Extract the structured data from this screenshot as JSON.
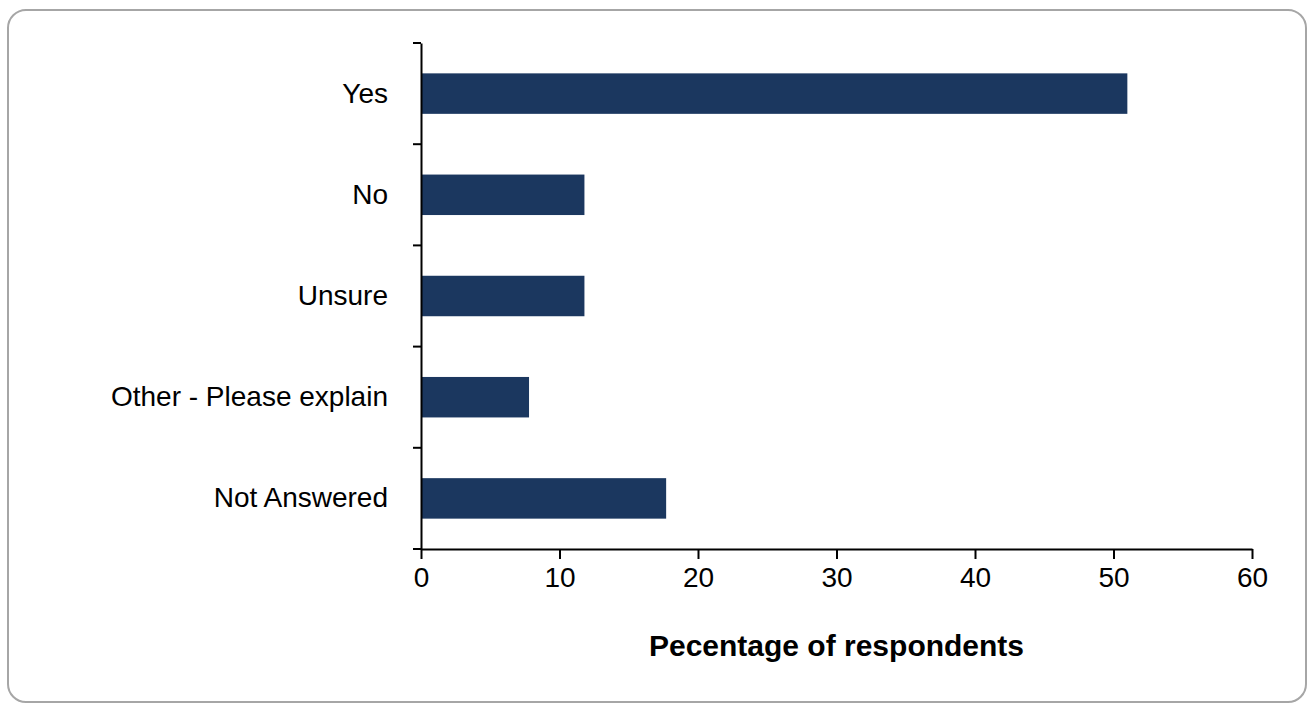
{
  "chart_data": {
    "type": "bar",
    "orientation": "horizontal",
    "categories": [
      "Yes",
      "No",
      "Unsure",
      "Other - Please explain",
      "Not Answered"
    ],
    "values": [
      51,
      11.8,
      11.8,
      7.8,
      17.7
    ],
    "color": "#1b375f",
    "xlabel": "Pecentage of respondents",
    "xlim": [
      0,
      60
    ],
    "xticks": [
      0,
      10,
      20,
      30,
      40,
      50,
      60
    ],
    "grid": false
  }
}
